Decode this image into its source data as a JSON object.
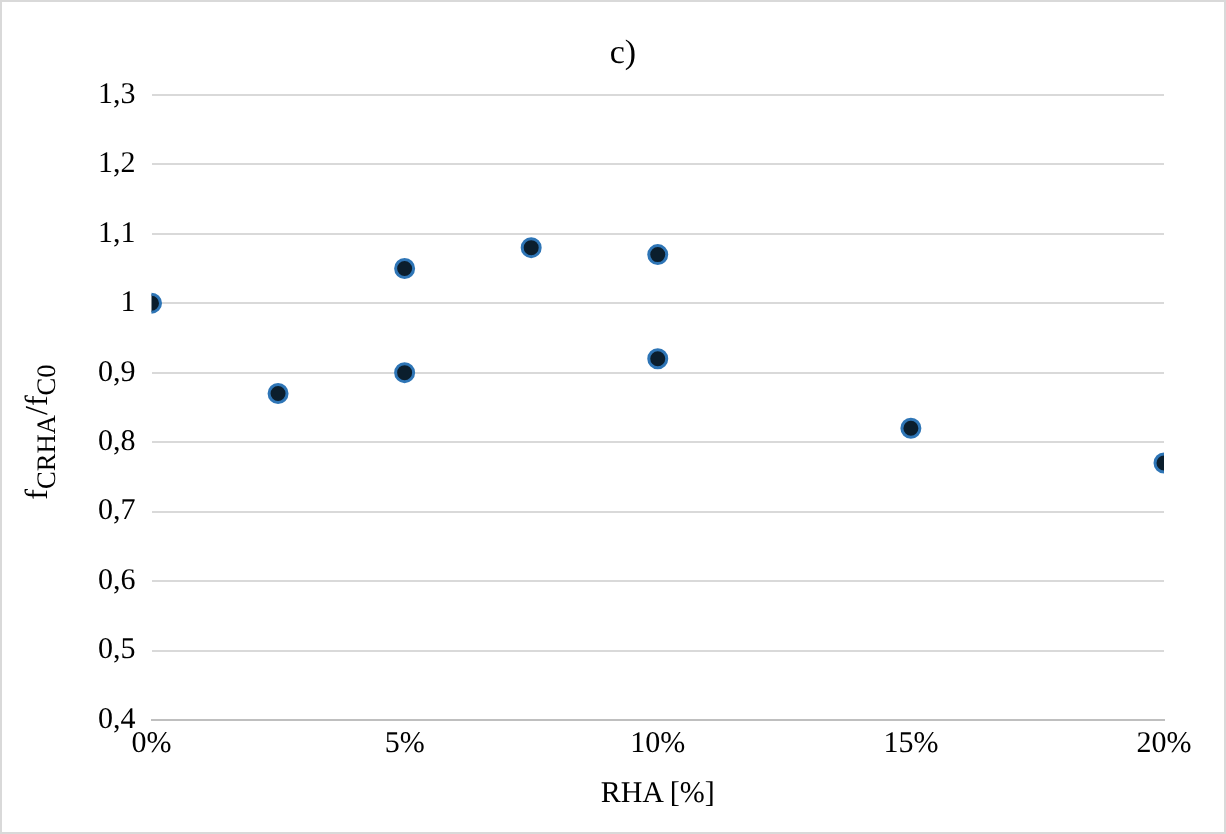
{
  "chart_data": {
    "type": "scatter",
    "title": "c)",
    "xlabel": "RHA [%]",
    "ylabel": "f$_{CRHA}$/f$_{C0}$",
    "x": [
      0,
      2.5,
      5,
      5,
      7.5,
      10,
      10,
      15,
      20
    ],
    "series": [
      {
        "color": "#0b1e2d",
        "values": [
          1.0,
          0.87,
          1.05,
          0.9,
          1.08,
          1.07,
          0.92,
          0.82,
          0.77
        ]
      }
    ],
    "xlim": [
      0,
      20
    ],
    "xticks": [
      {
        "value": 0,
        "label": "0%"
      },
      {
        "value": 5,
        "label": "5%"
      },
      {
        "value": 10,
        "label": "10%"
      },
      {
        "value": 15,
        "label": "15%"
      },
      {
        "value": 20,
        "label": "20%"
      }
    ],
    "ylim": [
      0.4,
      1.3
    ],
    "yticks": [
      {
        "value": 0.4,
        "label": "0,4"
      },
      {
        "value": 0.5,
        "label": "0,5"
      },
      {
        "value": 0.6,
        "label": "0,6"
      },
      {
        "value": 0.7,
        "label": "0,7"
      },
      {
        "value": 0.8,
        "label": "0,8"
      },
      {
        "value": 0.9,
        "label": "0,9"
      },
      1,
      {
        "value": 1.1,
        "label": "1,1"
      },
      {
        "value": 1.2,
        "label": "1,2"
      },
      {
        "value": 1.3,
        "label": "1,3"
      }
    ],
    "grid": "y",
    "marker": "circle",
    "legend": false
  }
}
